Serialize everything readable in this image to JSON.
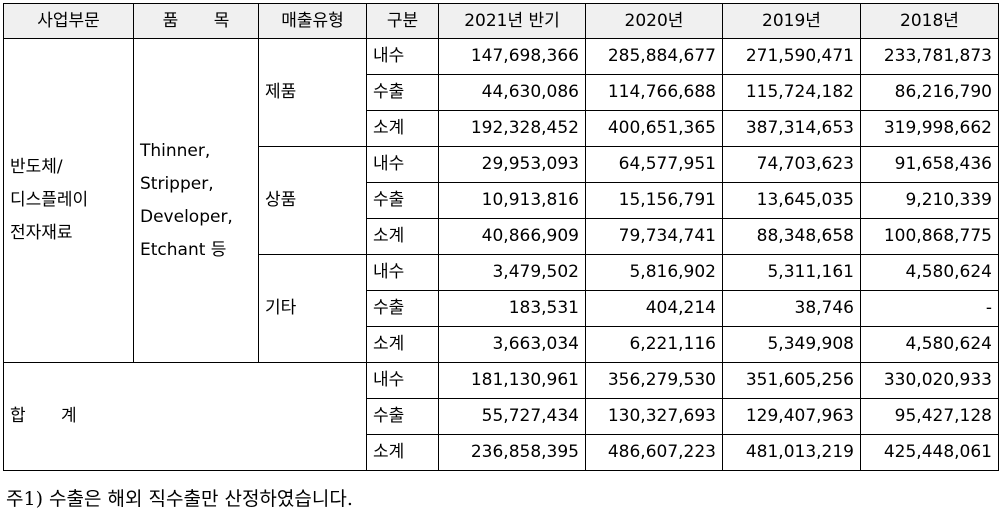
{
  "headers": [
    "사업부문",
    "품  목",
    "매출유형",
    "구분",
    "2021년 반기",
    "2020년",
    "2019년",
    "2018년"
  ],
  "segment": [
    "반도체/",
    "디스플레이",
    "전자재료"
  ],
  "products": [
    "Thinner,",
    "Stripper,",
    "Developer,",
    "Etchant 등"
  ],
  "groups": [
    {
      "type": "제품",
      "rows": [
        {
          "kind": "내수",
          "values": [
            "147,698,366",
            "285,884,677",
            "271,590,471",
            "233,781,873"
          ]
        },
        {
          "kind": "수출",
          "values": [
            "44,630,086",
            "114,766,688",
            "115,724,182",
            "86,216,790"
          ]
        },
        {
          "kind": "소계",
          "values": [
            "192,328,452",
            "400,651,365",
            "387,314,653",
            "319,998,662"
          ]
        }
      ]
    },
    {
      "type": "상품",
      "rows": [
        {
          "kind": "내수",
          "values": [
            "29,953,093",
            "64,577,951",
            "74,703,623",
            "91,658,436"
          ]
        },
        {
          "kind": "수출",
          "values": [
            "10,913,816",
            "15,156,791",
            "13,645,035",
            "9,210,339"
          ]
        },
        {
          "kind": "소계",
          "values": [
            "40,866,909",
            "79,734,741",
            "88,348,658",
            "100,868,775"
          ]
        }
      ]
    },
    {
      "type": "기타",
      "rows": [
        {
          "kind": "내수",
          "values": [
            "3,479,502",
            "5,816,902",
            "5,311,161",
            "4,580,624"
          ]
        },
        {
          "kind": "수출",
          "values": [
            "183,531",
            "404,214",
            "38,746",
            "-"
          ]
        },
        {
          "kind": "소계",
          "values": [
            "3,663,034",
            "6,221,116",
            "5,349,908",
            "4,580,624"
          ]
        }
      ]
    }
  ],
  "total": {
    "label": "합 계",
    "rows": [
      {
        "kind": "내수",
        "values": [
          "181,130,961",
          "356,279,530",
          "351,605,256",
          "330,020,933"
        ]
      },
      {
        "kind": "수출",
        "values": [
          "55,727,434",
          "130,327,693",
          "129,407,963",
          "95,427,128"
        ]
      },
      {
        "kind": "소계",
        "values": [
          "236,858,395",
          "486,607,223",
          "481,013,219",
          "425,448,061"
        ]
      }
    ]
  },
  "footnote": "주1) 수출은 해외 직수출만 산정하였습니다."
}
